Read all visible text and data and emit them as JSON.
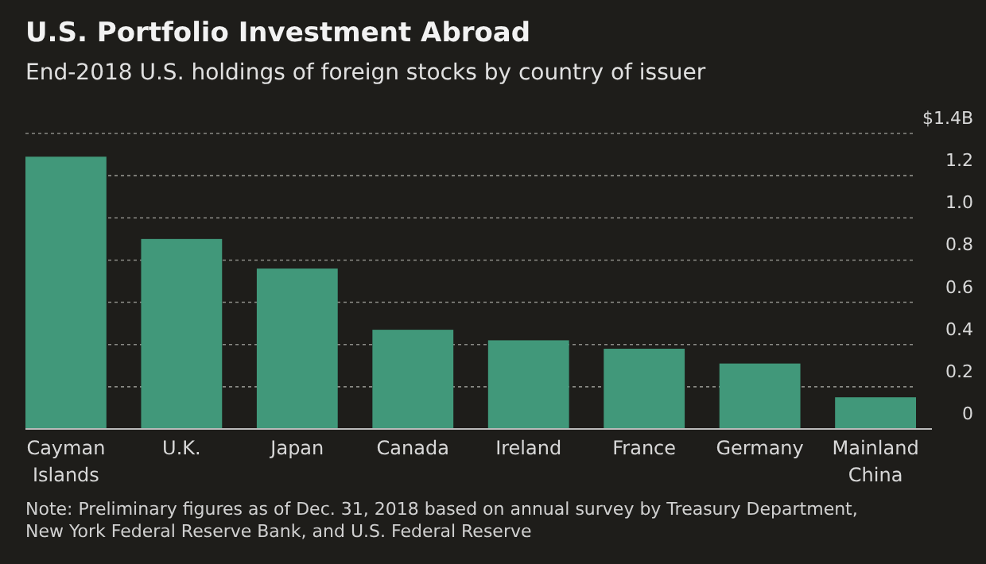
{
  "chart_data": {
    "type": "bar",
    "title": "U.S. Portfolio Investment Abroad",
    "subtitle": "End-2018 U.S. holdings of foreign stocks by country of issuer",
    "categories": [
      "Cayman Islands",
      "U.K.",
      "Japan",
      "Canada",
      "Ireland",
      "France",
      "Germany",
      "Mainland China"
    ],
    "values": [
      1.29,
      0.9,
      0.76,
      0.47,
      0.42,
      0.38,
      0.31,
      0.15
    ],
    "color": "#41987a",
    "ylim": [
      0,
      1.4
    ],
    "yticks": [
      0,
      0.2,
      0.4,
      0.6,
      0.8,
      {
        "value": 1,
        "label": "1.0"
      },
      1.2,
      {
        "value": 1.4,
        "label": "$1.4B"
      }
    ],
    "grid": "y",
    "annotations": [
      "Note: Preliminary figures as of Dec. 31, 2018 based on annual survey by Treasury Department, New York Federal Reserve Bank, and U.S. Federal Reserve"
    ]
  }
}
